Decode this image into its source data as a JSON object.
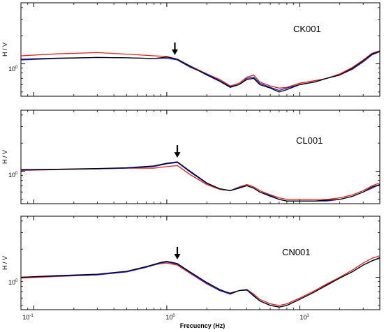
{
  "figure": {
    "xlabel": "Frecuency  (Hz)",
    "x_tick_labels": [
      {
        "base": "10",
        "exp": "-1",
        "value": 0.1
      },
      {
        "base": "10",
        "exp": "0",
        "value": 1
      },
      {
        "base": "10",
        "exp": "1",
        "value": 10
      }
    ]
  },
  "chart_data": [
    {
      "type": "line",
      "title": "CK001",
      "ylabel": "H / V",
      "y_tick_label": {
        "base": "10",
        "exp": "0",
        "value": 1
      },
      "x_scale": "log",
      "y_scale": "log",
      "xlim": [
        0.08,
        40
      ],
      "ylim": [
        0.45,
        4.5
      ],
      "grid": false,
      "arrow_at": 1.15,
      "colors": {
        "red": "#e02020",
        "blue": "#2020d0",
        "black": "#000000"
      },
      "series": [
        {
          "color": "red",
          "points": [
            [
              0.08,
              1.22
            ],
            [
              0.15,
              1.28
            ],
            [
              0.3,
              1.32
            ],
            [
              0.5,
              1.27
            ],
            [
              0.8,
              1.22
            ],
            [
              1.0,
              1.2
            ],
            [
              1.2,
              1.12
            ],
            [
              1.5,
              0.95
            ],
            [
              2.0,
              0.78
            ],
            [
              2.5,
              0.68
            ],
            [
              3.0,
              0.58
            ],
            [
              3.5,
              0.62
            ],
            [
              4.0,
              0.72
            ],
            [
              4.5,
              0.76
            ],
            [
              5.0,
              0.64
            ],
            [
              6.0,
              0.58
            ],
            [
              7.0,
              0.55
            ],
            [
              8.0,
              0.56
            ],
            [
              10,
              0.62
            ],
            [
              13,
              0.66
            ],
            [
              16,
              0.7
            ],
            [
              20,
              0.78
            ],
            [
              25,
              0.92
            ],
            [
              30,
              1.1
            ],
            [
              35,
              1.3
            ],
            [
              40,
              1.38
            ]
          ]
        },
        {
          "color": "blue",
          "points": [
            [
              0.08,
              1.1
            ],
            [
              0.15,
              1.14
            ],
            [
              0.3,
              1.17
            ],
            [
              0.5,
              1.16
            ],
            [
              0.8,
              1.14
            ],
            [
              1.0,
              1.15
            ],
            [
              1.2,
              1.1
            ],
            [
              1.5,
              0.92
            ],
            [
              2.0,
              0.78
            ],
            [
              2.5,
              0.66
            ],
            [
              3.0,
              0.57
            ],
            [
              3.5,
              0.6
            ],
            [
              4.0,
              0.7
            ],
            [
              4.5,
              0.72
            ],
            [
              5.0,
              0.62
            ],
            [
              6.0,
              0.56
            ],
            [
              7.0,
              0.52
            ],
            [
              8.0,
              0.55
            ],
            [
              10,
              0.6
            ],
            [
              13,
              0.64
            ],
            [
              16,
              0.7
            ],
            [
              20,
              0.76
            ],
            [
              25,
              0.88
            ],
            [
              30,
              1.05
            ],
            [
              35,
              1.25
            ],
            [
              40,
              1.35
            ]
          ]
        },
        {
          "color": "black",
          "points": [
            [
              0.08,
              1.12
            ],
            [
              0.15,
              1.15
            ],
            [
              0.3,
              1.17
            ],
            [
              0.5,
              1.16
            ],
            [
              0.8,
              1.14
            ],
            [
              1.0,
              1.18
            ],
            [
              1.2,
              1.12
            ],
            [
              1.5,
              0.94
            ],
            [
              2.0,
              0.76
            ],
            [
              2.5,
              0.65
            ],
            [
              3.0,
              0.56
            ],
            [
              3.5,
              0.6
            ],
            [
              4.0,
              0.68
            ],
            [
              4.5,
              0.7
            ],
            [
              5.0,
              0.6
            ],
            [
              6.0,
              0.55
            ],
            [
              7.0,
              0.5
            ],
            [
              8.0,
              0.53
            ],
            [
              10,
              0.6
            ],
            [
              13,
              0.64
            ],
            [
              16,
              0.7
            ],
            [
              20,
              0.76
            ],
            [
              25,
              0.9
            ],
            [
              30,
              1.08
            ],
            [
              35,
              1.28
            ],
            [
              40,
              1.36
            ]
          ]
        }
      ]
    },
    {
      "type": "line",
      "title": "CL001",
      "ylabel": "H / V",
      "y_tick_label": {
        "base": "10",
        "exp": "0",
        "value": 1
      },
      "x_scale": "log",
      "y_scale": "log",
      "xlim": [
        0.08,
        40
      ],
      "ylim": [
        0.45,
        4.5
      ],
      "grid": false,
      "arrow_at": 1.2,
      "colors": {
        "red": "#e02020",
        "blue": "#2020d0",
        "black": "#000000"
      },
      "series": [
        {
          "color": "red",
          "points": [
            [
              0.08,
              1.02
            ],
            [
              0.15,
              1.04
            ],
            [
              0.3,
              1.06
            ],
            [
              0.5,
              1.08
            ],
            [
              0.8,
              1.08
            ],
            [
              1.0,
              1.12
            ],
            [
              1.2,
              1.15
            ],
            [
              1.5,
              0.92
            ],
            [
              2.0,
              0.72
            ],
            [
              2.5,
              0.64
            ],
            [
              3.0,
              0.62
            ],
            [
              3.5,
              0.68
            ],
            [
              4.0,
              0.72
            ],
            [
              4.5,
              0.68
            ],
            [
              5.0,
              0.62
            ],
            [
              6.0,
              0.56
            ],
            [
              7.0,
              0.52
            ],
            [
              8.0,
              0.5
            ],
            [
              10,
              0.5
            ],
            [
              13,
              0.5
            ],
            [
              16,
              0.5
            ],
            [
              20,
              0.52
            ],
            [
              25,
              0.56
            ],
            [
              30,
              0.62
            ],
            [
              35,
              0.7
            ],
            [
              40,
              0.75
            ]
          ]
        },
        {
          "color": "blue",
          "points": [
            [
              0.08,
              1.03
            ],
            [
              0.15,
              1.05
            ],
            [
              0.3,
              1.06
            ],
            [
              0.5,
              1.08
            ],
            [
              0.8,
              1.12
            ],
            [
              1.0,
              1.2
            ],
            [
              1.2,
              1.24
            ],
            [
              1.5,
              0.98
            ],
            [
              2.0,
              0.74
            ],
            [
              2.5,
              0.65
            ],
            [
              3.0,
              0.62
            ],
            [
              3.5,
              0.67
            ],
            [
              4.0,
              0.7
            ],
            [
              4.5,
              0.66
            ],
            [
              5.0,
              0.6
            ],
            [
              6.0,
              0.55
            ],
            [
              7.0,
              0.5
            ],
            [
              8.0,
              0.48
            ],
            [
              10,
              0.48
            ],
            [
              13,
              0.48
            ],
            [
              16,
              0.48
            ],
            [
              20,
              0.5
            ],
            [
              25,
              0.54
            ],
            [
              30,
              0.6
            ],
            [
              35,
              0.66
            ],
            [
              40,
              0.72
            ]
          ]
        },
        {
          "color": "black",
          "points": [
            [
              0.08,
              1.04
            ],
            [
              0.15,
              1.05
            ],
            [
              0.3,
              1.07
            ],
            [
              0.5,
              1.09
            ],
            [
              0.8,
              1.14
            ],
            [
              1.0,
              1.22
            ],
            [
              1.2,
              1.26
            ],
            [
              1.5,
              1.0
            ],
            [
              2.0,
              0.75
            ],
            [
              2.5,
              0.65
            ],
            [
              3.0,
              0.62
            ],
            [
              3.5,
              0.66
            ],
            [
              4.0,
              0.7
            ],
            [
              4.5,
              0.66
            ],
            [
              5.0,
              0.6
            ],
            [
              6.0,
              0.54
            ],
            [
              7.0,
              0.5
            ],
            [
              8.0,
              0.48
            ],
            [
              10,
              0.48
            ],
            [
              13,
              0.48
            ],
            [
              16,
              0.49
            ],
            [
              20,
              0.5
            ],
            [
              25,
              0.54
            ],
            [
              30,
              0.6
            ],
            [
              35,
              0.68
            ],
            [
              40,
              0.72
            ]
          ]
        }
      ]
    },
    {
      "type": "line",
      "title": "CN001",
      "ylabel": "H / V",
      "y_tick_label": {
        "base": "10",
        "exp": "0",
        "value": 1
      },
      "x_scale": "log",
      "y_scale": "log",
      "xlim": [
        0.08,
        40
      ],
      "ylim": [
        0.45,
        4.5
      ],
      "grid": false,
      "arrow_at": 1.2,
      "colors": {
        "red": "#e02020",
        "blue": "#2020d0",
        "black": "#000000"
      },
      "series": [
        {
          "color": "red",
          "points": [
            [
              0.08,
              0.98
            ],
            [
              0.15,
              1.02
            ],
            [
              0.3,
              1.06
            ],
            [
              0.5,
              1.15
            ],
            [
              0.7,
              1.3
            ],
            [
              0.9,
              1.4
            ],
            [
              1.0,
              1.42
            ],
            [
              1.2,
              1.35
            ],
            [
              1.5,
              1.1
            ],
            [
              2.0,
              0.85
            ],
            [
              2.5,
              0.72
            ],
            [
              3.0,
              0.68
            ],
            [
              3.5,
              0.72
            ],
            [
              4.0,
              0.74
            ],
            [
              4.5,
              0.66
            ],
            [
              5.0,
              0.58
            ],
            [
              6.0,
              0.52
            ],
            [
              7.0,
              0.5
            ],
            [
              8.0,
              0.52
            ],
            [
              10,
              0.6
            ],
            [
              13,
              0.72
            ],
            [
              16,
              0.85
            ],
            [
              20,
              1.0
            ],
            [
              25,
              1.2
            ],
            [
              30,
              1.42
            ],
            [
              35,
              1.6
            ],
            [
              40,
              1.7
            ]
          ]
        },
        {
          "color": "blue",
          "points": [
            [
              0.08,
              1.0
            ],
            [
              0.15,
              1.03
            ],
            [
              0.3,
              1.06
            ],
            [
              0.5,
              1.14
            ],
            [
              0.7,
              1.28
            ],
            [
              0.9,
              1.42
            ],
            [
              1.0,
              1.46
            ],
            [
              1.2,
              1.38
            ],
            [
              1.5,
              1.12
            ],
            [
              2.0,
              0.86
            ],
            [
              2.5,
              0.72
            ],
            [
              3.0,
              0.66
            ],
            [
              3.5,
              0.72
            ],
            [
              4.0,
              0.74
            ],
            [
              4.5,
              0.64
            ],
            [
              5.0,
              0.56
            ],
            [
              6.0,
              0.5
            ],
            [
              7.0,
              0.48
            ],
            [
              8.0,
              0.5
            ],
            [
              10,
              0.58
            ],
            [
              13,
              0.7
            ],
            [
              16,
              0.82
            ],
            [
              20,
              0.98
            ],
            [
              25,
              1.15
            ],
            [
              30,
              1.35
            ],
            [
              35,
              1.5
            ],
            [
              40,
              1.6
            ]
          ]
        },
        {
          "color": "black",
          "points": [
            [
              0.08,
              1.0
            ],
            [
              0.15,
              1.04
            ],
            [
              0.3,
              1.08
            ],
            [
              0.5,
              1.16
            ],
            [
              0.7,
              1.3
            ],
            [
              0.9,
              1.44
            ],
            [
              1.0,
              1.48
            ],
            [
              1.2,
              1.4
            ],
            [
              1.5,
              1.14
            ],
            [
              2.0,
              0.88
            ],
            [
              2.5,
              0.74
            ],
            [
              3.0,
              0.67
            ],
            [
              3.5,
              0.72
            ],
            [
              4.0,
              0.73
            ],
            [
              4.5,
              0.63
            ],
            [
              5.0,
              0.56
            ],
            [
              6.0,
              0.5
            ],
            [
              7.0,
              0.48
            ],
            [
              8.0,
              0.5
            ],
            [
              10,
              0.58
            ],
            [
              13,
              0.7
            ],
            [
              16,
              0.83
            ],
            [
              20,
              0.98
            ],
            [
              25,
              1.15
            ],
            [
              30,
              1.35
            ],
            [
              35,
              1.5
            ],
            [
              40,
              1.62
            ]
          ]
        }
      ]
    }
  ]
}
